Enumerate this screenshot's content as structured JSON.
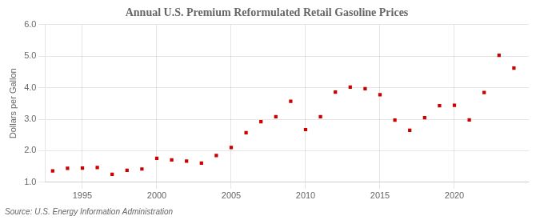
{
  "chart_data": {
    "type": "scatter",
    "title": "Annual U.S. Premium Reformulated Retail Gasoline Prices",
    "ylabel": "Dollars per Gallon",
    "annotation": "Source: U.S. Energy Information Administration",
    "x": [
      1993,
      1994,
      1995,
      1996,
      1997,
      1998,
      1999,
      2000,
      2001,
      2002,
      2003,
      2004,
      2005,
      2006,
      2007,
      2008,
      2009,
      2010,
      2011,
      2012,
      2013,
      2014,
      2015,
      2016,
      2017,
      2018,
      2019,
      2020,
      2021,
      2022,
      2023,
      2024
    ],
    "values": [
      1.36,
      1.44,
      1.45,
      1.47,
      1.25,
      1.38,
      1.42,
      1.76,
      1.71,
      1.67,
      1.61,
      1.85,
      2.1,
      2.57,
      2.92,
      3.08,
      3.57,
      2.67,
      3.08,
      3.86,
      4.02,
      3.97,
      3.78,
      2.97,
      2.65,
      3.05,
      3.43,
      3.44,
      2.98,
      3.85,
      5.03,
      4.62
    ],
    "color": "#cc0000",
    "marker": "square",
    "xlim": [
      1992.5,
      2025
    ],
    "xticks": [
      1995,
      2000,
      2005,
      2010,
      2015,
      2020
    ],
    "ylim": [
      1.0,
      6.0
    ],
    "yticks": [
      {
        "value": 1.0,
        "label": "1.0"
      },
      {
        "value": 2.0,
        "label": "2.0"
      },
      {
        "value": 3.0,
        "label": "3.0"
      },
      {
        "value": 4.0,
        "label": "4.0"
      },
      {
        "value": 5.0,
        "label": "5.0"
      },
      {
        "value": 6.0,
        "label": "6.0"
      }
    ],
    "grid": true
  }
}
